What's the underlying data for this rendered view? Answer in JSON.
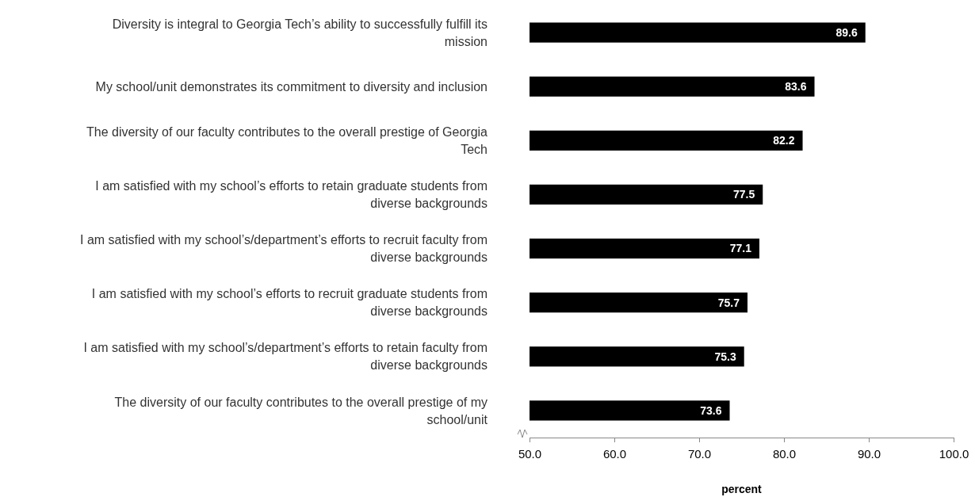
{
  "chart_data": {
    "type": "bar",
    "orientation": "horizontal",
    "xlabel": "percent",
    "categories": [
      "Diversity is integral to Georgia Tech’s ability to successfully fulfill its mission",
      "My school/unit demonstrates its commitment to diversity and inclusion",
      "The diversity of our faculty contributes to the overall prestige of Georgia Tech",
      "I am satisfied with my school’s efforts to retain graduate students from diverse backgrounds",
      "I am satisfied with my school’s/department’s efforts to recruit faculty from diverse backgrounds",
      "I am satisfied with my school’s efforts to recruit graduate students from diverse backgrounds",
      "I am satisfied with my school’s/department’s efforts to retain faculty from diverse backgrounds",
      "The diversity of our faculty contributes to the overall prestige of my school/unit"
    ],
    "values": [
      89.6,
      83.6,
      82.2,
      77.5,
      77.1,
      75.7,
      75.3,
      73.6
    ],
    "color": "#000000",
    "data_labels": true,
    "grid": false,
    "xlim": [
      50,
      100
    ],
    "xticks": [
      {
        "value": 50,
        "label": "50.0"
      },
      {
        "value": 60,
        "label": "60.0"
      },
      {
        "value": 70,
        "label": "70.0"
      },
      {
        "value": 80,
        "label": "80.0"
      },
      {
        "value": 90,
        "label": "90.0"
      },
      {
        "value": 100,
        "label": "100.0"
      }
    ]
  }
}
